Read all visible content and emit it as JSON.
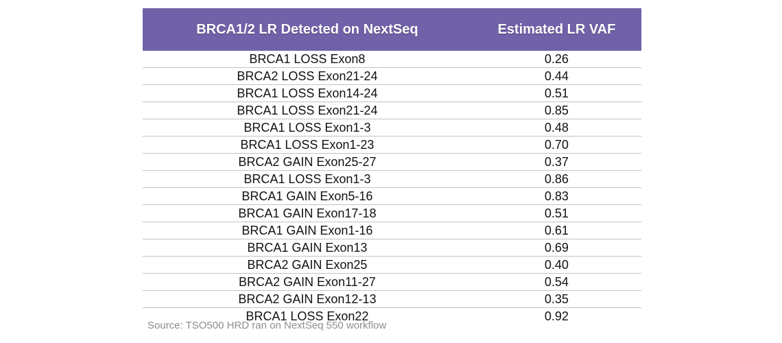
{
  "table": {
    "columns": [
      "BRCA1/2 LR Detected on NextSeq",
      "Estimated LR VAF"
    ],
    "rows": [
      {
        "variant": "BRCA1 LOSS Exon8",
        "vaf": "0.26"
      },
      {
        "variant": "BRCA2 LOSS Exon21-24",
        "vaf": "0.44"
      },
      {
        "variant": "BRCA1 LOSS Exon14-24",
        "vaf": "0.51"
      },
      {
        "variant": "BRCA1 LOSS Exon21-24",
        "vaf": "0.85"
      },
      {
        "variant": "BRCA1 LOSS Exon1-3",
        "vaf": "0.48"
      },
      {
        "variant": "BRCA1 LOSS Exon1-23",
        "vaf": "0.70"
      },
      {
        "variant": "BRCA2 GAIN Exon25-27",
        "vaf": "0.37"
      },
      {
        "variant": "BRCA1 LOSS Exon1-3",
        "vaf": "0.86"
      },
      {
        "variant": "BRCA1 GAIN Exon5-16",
        "vaf": "0.83"
      },
      {
        "variant": "BRCA1 GAIN Exon17-18",
        "vaf": "0.51"
      },
      {
        "variant": "BRCA1 GAIN Exon1-16",
        "vaf": "0.61"
      },
      {
        "variant": "BRCA1 GAIN Exon13",
        "vaf": "0.69"
      },
      {
        "variant": "BRCA2 GAIN Exon25",
        "vaf": "0.40"
      },
      {
        "variant": "BRCA2 GAIN Exon11-27",
        "vaf": "0.54"
      },
      {
        "variant": "BRCA2 GAIN Exon12-13",
        "vaf": "0.35"
      },
      {
        "variant": "BRCA1 LOSS Exon22",
        "vaf": "0.92"
      }
    ]
  },
  "source_note": "Source: TSO500 HRD ran on NextSeq 550 workflow",
  "colors": {
    "header_bg": "#7061A8",
    "header_text": "#FFFFFF",
    "row_divider": "#C2C2C2",
    "body_text": "#111111",
    "source_text": "#8D8D8D"
  },
  "chart_data": {
    "type": "table",
    "columns": [
      "BRCA1/2 LR Detected on NextSeq",
      "Estimated LR VAF"
    ],
    "rows": [
      [
        "BRCA1 LOSS Exon8",
        0.26
      ],
      [
        "BRCA2 LOSS Exon21-24",
        0.44
      ],
      [
        "BRCA1 LOSS Exon14-24",
        0.51
      ],
      [
        "BRCA1 LOSS Exon21-24",
        0.85
      ],
      [
        "BRCA1 LOSS Exon1-3",
        0.48
      ],
      [
        "BRCA1 LOSS Exon1-23",
        0.7
      ],
      [
        "BRCA2 GAIN Exon25-27",
        0.37
      ],
      [
        "BRCA1 LOSS Exon1-3",
        0.86
      ],
      [
        "BRCA1 GAIN Exon5-16",
        0.83
      ],
      [
        "BRCA1 GAIN Exon17-18",
        0.51
      ],
      [
        "BRCA1 GAIN Exon1-16",
        0.61
      ],
      [
        "BRCA1 GAIN Exon13",
        0.69
      ],
      [
        "BRCA2 GAIN Exon25",
        0.4
      ],
      [
        "BRCA2 GAIN Exon11-27",
        0.54
      ],
      [
        "BRCA2 GAIN Exon12-13",
        0.35
      ],
      [
        "BRCA1 LOSS Exon22",
        0.92
      ]
    ],
    "footnote": "Source: TSO500 HRD ran on NextSeq 550 workflow",
    "legend_position": "none",
    "grid": "horizontal-row-dividers"
  }
}
